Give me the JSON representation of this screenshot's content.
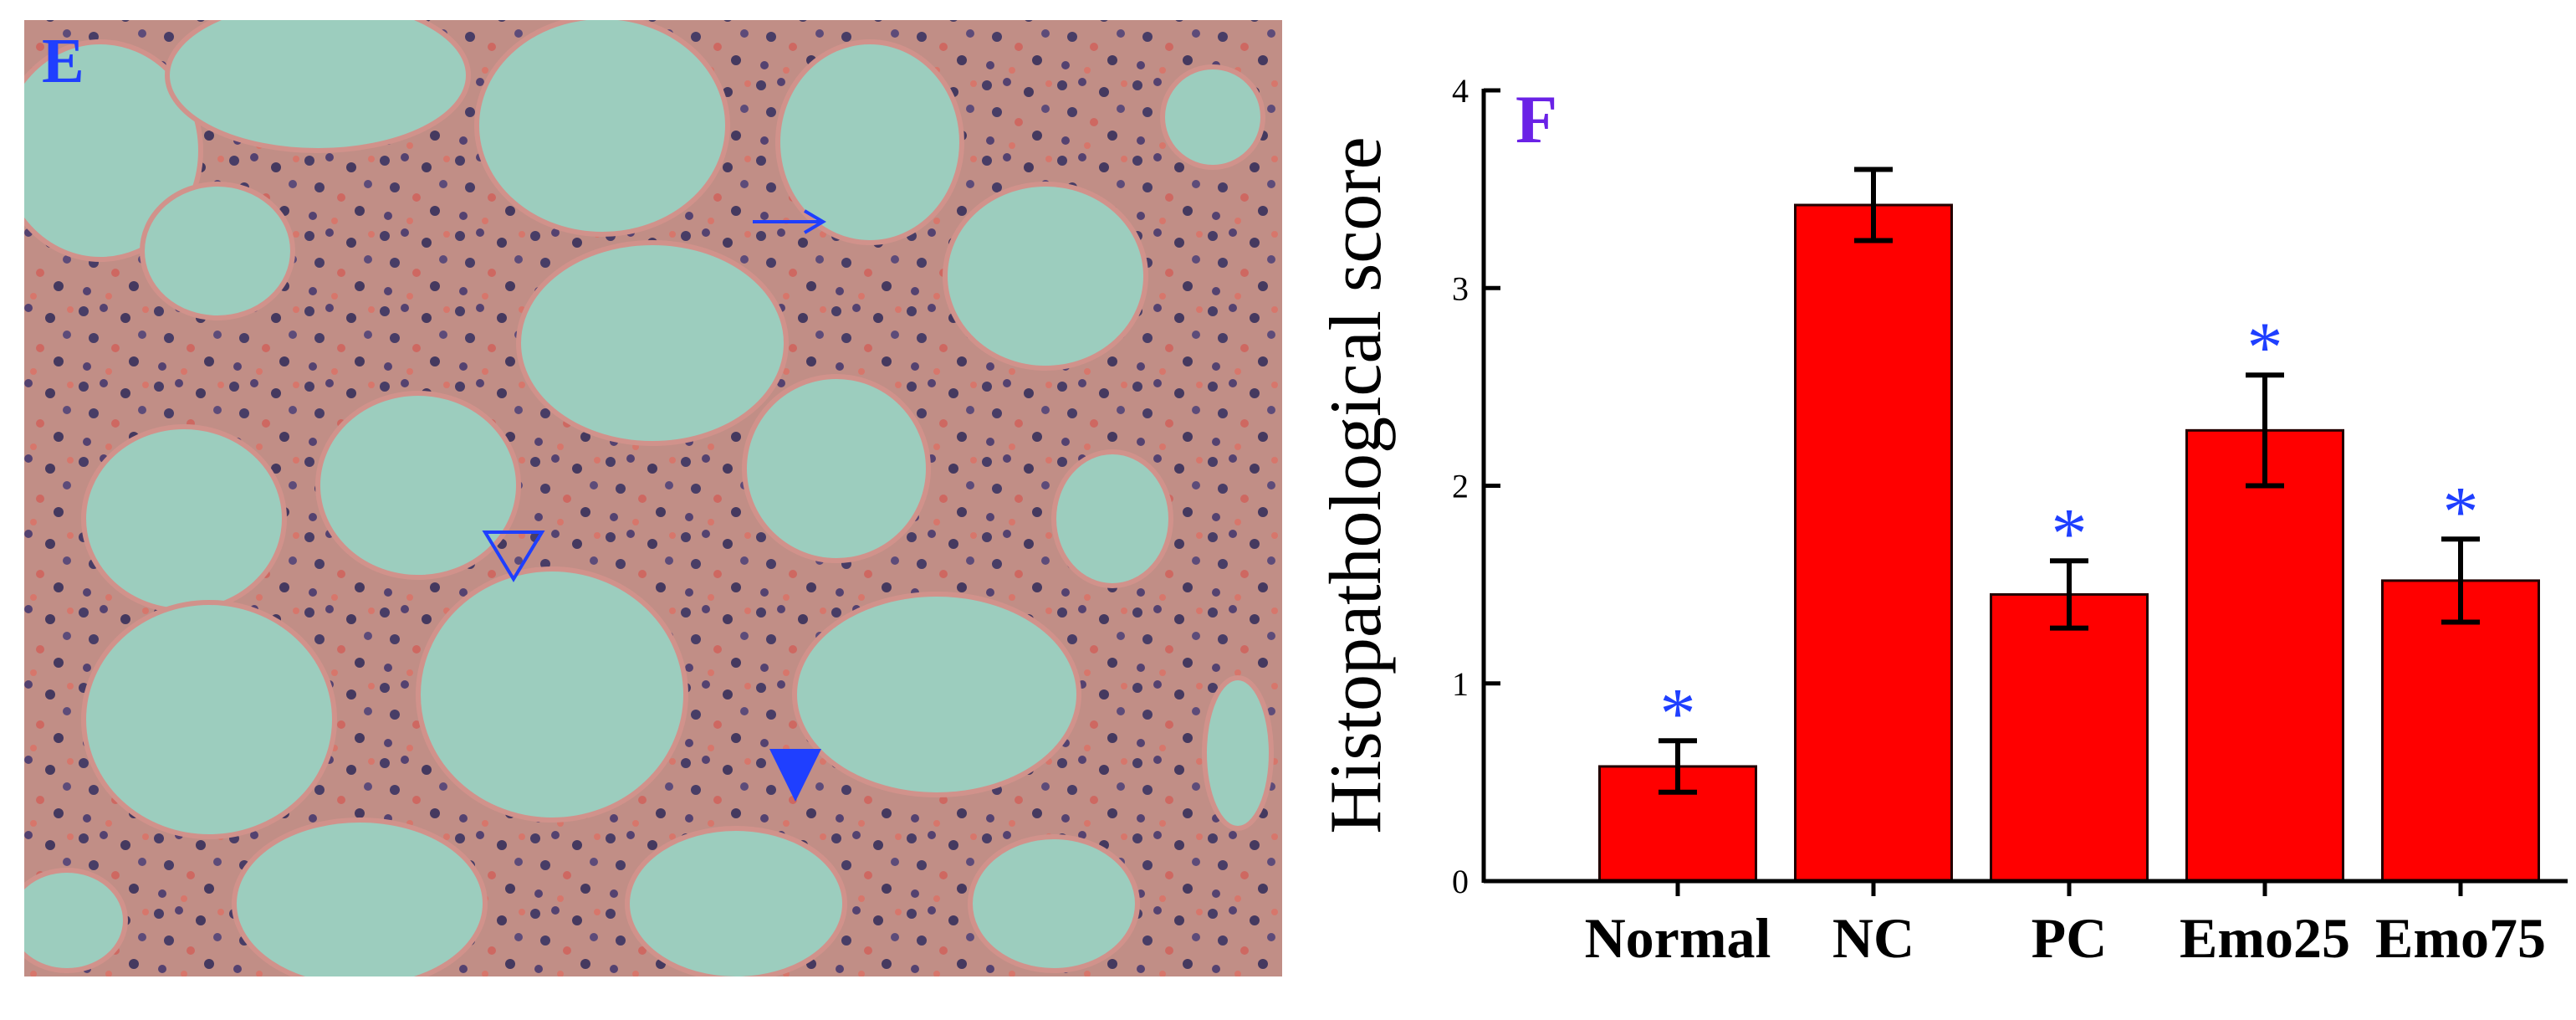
{
  "panel_label_left": "E",
  "chart_data": {
    "type": "bar",
    "panel_label": "F",
    "ylabel": "Histopathological score",
    "categories": [
      "Normal",
      "NC",
      "PC",
      "Emo25",
      "Emo75"
    ],
    "values": [
      0.58,
      3.42,
      1.45,
      2.28,
      1.52
    ],
    "errors": [
      0.13,
      0.18,
      0.17,
      0.28,
      0.21
    ],
    "markers": [
      "*",
      null,
      "*",
      "*",
      "*"
    ],
    "color": "#ff0000",
    "marker_color": "#1f3fff",
    "ylim": [
      0,
      4
    ],
    "yticks": [
      0,
      1,
      2,
      3,
      4
    ]
  }
}
